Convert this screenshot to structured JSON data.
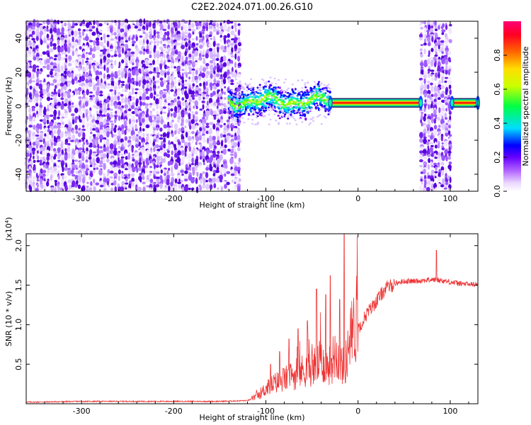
{
  "title": "C2E2.2024.071.00.26.G10",
  "chart_data": [
    {
      "type": "heatmap",
      "xlabel": "Height of straight line (km)",
      "ylabel": "Frequency (Hz)",
      "xlim": [
        -360,
        130
      ],
      "ylim": [
        -50,
        50
      ],
      "x_ticks": [
        -300,
        -200,
        -100,
        0,
        100
      ],
      "y_ticks": [
        -40,
        -20,
        0,
        20,
        40
      ],
      "colorbar": {
        "label": "Normalized spectral amplitude",
        "range": [
          0,
          1
        ],
        "ticks": [
          0.0,
          0.2,
          0.4,
          0.6,
          0.8
        ],
        "tick_labels": [
          "0.0",
          "0.2",
          "0.4",
          "0.6",
          "0.8"
        ],
        "colors": [
          "#ffffff",
          "#cc99ff",
          "#8800ff",
          "#0000ff",
          "#00ffff",
          "#00ff00",
          "#ffff00",
          "#ff8800",
          "#ff0000",
          "#ff0088"
        ]
      },
      "regions": [
        {
          "x_range": [
            -360,
            -128
          ],
          "freq_range": [
            -50,
            50
          ],
          "amplitude": "low-noise"
        },
        {
          "x_range": [
            -140,
            -30
          ],
          "freq_center": 3,
          "freq_halfwidth": 8,
          "amplitude": "medium"
        },
        {
          "x_range": [
            -30,
            68
          ],
          "freq_center": 2,
          "freq_halfwidth": 2,
          "amplitude": "high"
        },
        {
          "x_range": [
            68,
            102
          ],
          "freq_range": [
            -50,
            50
          ],
          "amplitude": "low-noise"
        },
        {
          "x_range": [
            102,
            130
          ],
          "freq_center": 2,
          "freq_halfwidth": 2,
          "amplitude": "high"
        }
      ]
    },
    {
      "type": "line",
      "xlabel": "Height of straight line (km)",
      "ylabel": "SNR (10 * v/v)",
      "y_multiplier_label": "(x10",
      "y_multiplier_exp": "4",
      "y_multiplier_close": ")",
      "xlim": [
        -360,
        130
      ],
      "ylim": [
        0,
        2.15
      ],
      "x_ticks": [
        -300,
        -200,
        -100,
        0,
        100
      ],
      "y_ticks": [
        0.5,
        1.0,
        1.5,
        2.0
      ],
      "y_tick_labels": [
        "0.5",
        "1.0",
        "1.5",
        "2.0"
      ],
      "series": [
        {
          "color": "#ee3333",
          "profile": [
            [
              -360,
              0.02
            ],
            [
              -300,
              0.03
            ],
            [
              -200,
              0.03
            ],
            [
              -150,
              0.03
            ],
            [
              -120,
              0.04
            ],
            [
              -110,
              0.08
            ],
            [
              -100,
              0.16
            ],
            [
              -90,
              0.22
            ],
            [
              -80,
              0.26
            ],
            [
              -70,
              0.3
            ],
            [
              -60,
              0.35
            ],
            [
              -50,
              0.38
            ],
            [
              -40,
              0.45
            ],
            [
              -30,
              0.4
            ],
            [
              -25,
              0.55
            ],
            [
              -20,
              0.45
            ],
            [
              -15,
              0.38
            ],
            [
              -12,
              0.5
            ],
            [
              -8,
              0.7
            ],
            [
              -4,
              0.8
            ],
            [
              0,
              0.95
            ],
            [
              5,
              1.05
            ],
            [
              10,
              1.15
            ],
            [
              15,
              1.22
            ],
            [
              20,
              1.3
            ],
            [
              25,
              1.38
            ],
            [
              30,
              1.46
            ],
            [
              40,
              1.52
            ],
            [
              50,
              1.55
            ],
            [
              60,
              1.55
            ],
            [
              70,
              1.56
            ],
            [
              80,
              1.57
            ],
            [
              90,
              1.56
            ],
            [
              100,
              1.54
            ],
            [
              110,
              1.52
            ],
            [
              120,
              1.51
            ],
            [
              130,
              1.51
            ]
          ],
          "spikes": [
            {
              "x": -15,
              "value": 2.15
            },
            {
              "x": -30,
              "value": 1.62
            },
            {
              "x": -45,
              "value": 1.45
            },
            {
              "x": -35,
              "value": 1.38
            },
            {
              "x": 85,
              "value": 1.94
            },
            {
              "x": -20,
              "value": 1.32
            },
            {
              "x": -55,
              "value": 1.05
            },
            {
              "x": -65,
              "value": 0.95
            },
            {
              "x": -75,
              "value": 0.82
            },
            {
              "x": -85,
              "value": 0.66
            },
            {
              "x": -95,
              "value": 0.5
            }
          ]
        }
      ]
    }
  ]
}
